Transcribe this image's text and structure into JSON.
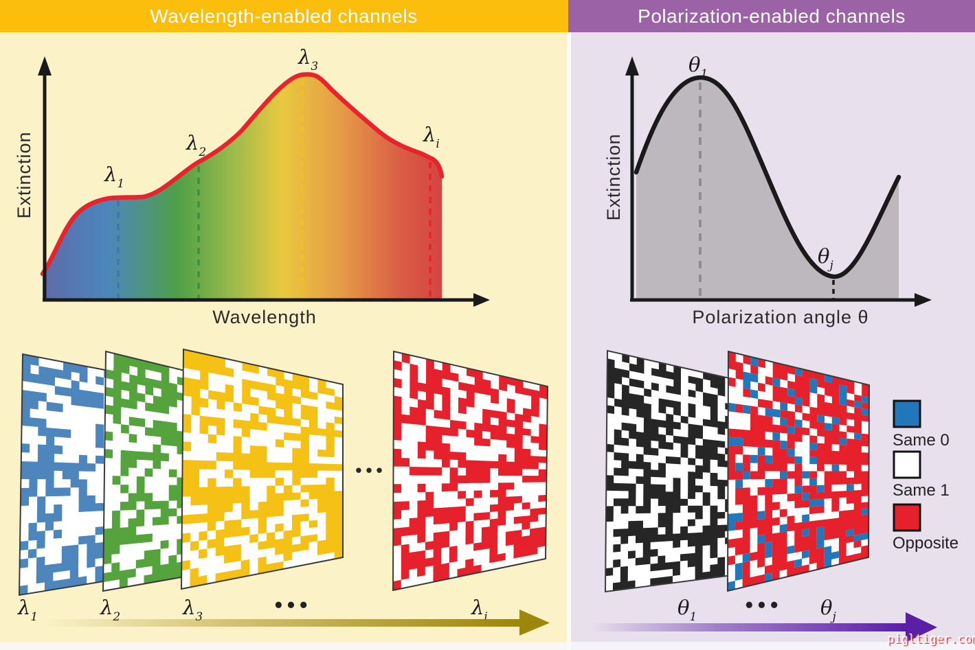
{
  "watermark": "pigltiger.com",
  "sections": {
    "left": {
      "title": "Wavelength-enabled channels",
      "banner_color": "#FBBE0D",
      "bg_color": "#FBF2C8"
    },
    "right": {
      "title": "Polarization-enabled channels",
      "banner_color": "#9B63A6",
      "bg_color": "#E8E0ED"
    }
  },
  "left_chart": {
    "type": "area",
    "ylabel": "Extinction",
    "xlabel": "Wavelength",
    "curve_color": "#E8232D",
    "gradient": [
      "#5E6BA8",
      "#4C86BC",
      "#4FA047",
      "#9DBB4B",
      "#EAC93E",
      "#E59A47",
      "#D95C46",
      "#D64440"
    ],
    "annotations": [
      {
        "main": "λ",
        "sub": "1",
        "color": "#3C76B5"
      },
      {
        "main": "λ",
        "sub": "2",
        "color": "#3E8F3C"
      },
      {
        "main": "λ",
        "sub": "3",
        "color": "#F2C11E"
      },
      {
        "main": "λ",
        "sub": "i",
        "color": "#E8232D"
      }
    ]
  },
  "right_chart": {
    "type": "area",
    "ylabel": "Extinction",
    "xlabel": "Polarization angle θ",
    "curve_color": "#1A1A1A",
    "fill_color": "#BDB7BE",
    "annotations": [
      {
        "main": "θ",
        "sub": "1",
        "color": "#2B2B2B"
      },
      {
        "main": "θ",
        "sub": "j",
        "color": "#2B2B2B"
      }
    ]
  },
  "wavelength_stack": {
    "dots": "•••",
    "arrow_color": "#9C860C",
    "panels": [
      {
        "main": "λ",
        "sub": "1",
        "color": "#4C86BC"
      },
      {
        "main": "λ",
        "sub": "2",
        "color": "#55A33C"
      },
      {
        "main": "λ",
        "sub": "3",
        "color": "#F6C115"
      },
      {
        "main": "λ",
        "sub": "i",
        "color": "#E6212B"
      }
    ]
  },
  "polarization_stack": {
    "dots": "•••",
    "arrow_color": "#5B1FA5",
    "panels": [
      {
        "main": "θ",
        "sub": "1",
        "color": "#262626"
      },
      {
        "main": "θ",
        "sub": "j",
        "color": "#E6212B",
        "alt_color": "#2277BB"
      }
    ]
  },
  "legend": [
    {
      "color": "#2277BB",
      "label": "Same 0"
    },
    {
      "color": "#FFFFFF",
      "label": "Same 1"
    },
    {
      "color": "#E6212B",
      "label": "Opposite"
    }
  ]
}
